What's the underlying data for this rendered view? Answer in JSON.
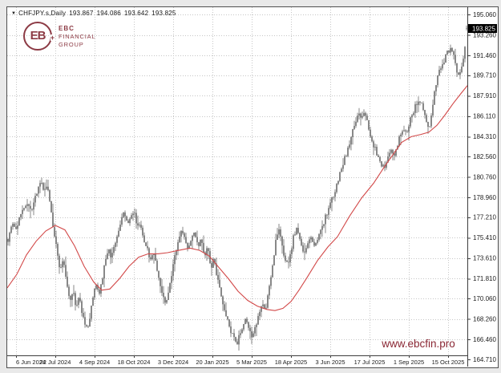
{
  "window": {
    "symbol_period": "CHFJPY.s,Daily",
    "open": "193.867",
    "high": "194.086",
    "low": "193.642",
    "close": "193.825"
  },
  "icons": {
    "symbol_dropdown": "▼",
    "logo_glyph": "EB",
    "logo_plus": "+"
  },
  "logo": {
    "line1": "EBC",
    "line2": "FINANCIAL",
    "line3": "GROUP",
    "color": "#8c3a44"
  },
  "watermark": {
    "text": "www.ebcfin.pro",
    "color": "#8a2734"
  },
  "chart_data": {
    "type": "candlestick",
    "title": "CHFJPY.s Daily",
    "last_price": "193.825",
    "last_ohlc": {
      "open": 193.867,
      "high": 194.086,
      "low": 193.642,
      "close": 193.825
    },
    "ylim": [
      164.71,
      195.06
    ],
    "grid": "dotted",
    "price_axis_ticks": [
      "195.060",
      "193.260",
      "191.460",
      "189.710",
      "187.910",
      "186.110",
      "184.310",
      "182.560",
      "180.760",
      "178.960",
      "177.210",
      "175.410",
      "173.610",
      "171.810",
      "170.060",
      "168.260",
      "166.460",
      "164.710"
    ],
    "date_axis_ticks": [
      "6 Jun 2024",
      "22 Jul 2024",
      "4 Sep 2024",
      "18 Oct 2024",
      "3 Dec 2024",
      "20 Jan 2025",
      "5 Mar 2025",
      "18 Apr 2025",
      "3 Jun 2025",
      "17 Jul 2025",
      "1 Sep 2025",
      "15 Oct 2025"
    ],
    "close_path": [
      [
        1,
        175.3
      ],
      [
        6,
        176.8
      ],
      [
        12,
        176.2
      ],
      [
        18,
        177.8
      ],
      [
        24,
        178.4
      ],
      [
        30,
        177.6
      ],
      [
        36,
        179.2
      ],
      [
        42,
        180.3
      ],
      [
        46,
        179.4
      ],
      [
        50,
        180.0
      ],
      [
        54,
        178.2
      ],
      [
        58,
        176.0
      ],
      [
        62,
        174.3
      ],
      [
        66,
        172.6
      ],
      [
        70,
        173.6
      ],
      [
        74,
        171.4
      ],
      [
        78,
        169.8
      ],
      [
        82,
        170.8
      ],
      [
        86,
        169.2
      ],
      [
        90,
        170.2
      ],
      [
        94,
        168.6
      ],
      [
        98,
        167.2
      ],
      [
        102,
        168.0
      ],
      [
        106,
        169.6
      ],
      [
        110,
        171.4
      ],
      [
        114,
        170.4
      ],
      [
        118,
        171.6
      ],
      [
        122,
        173.2
      ],
      [
        126,
        174.6
      ],
      [
        130,
        173.6
      ],
      [
        134,
        174.8
      ],
      [
        138,
        175.8
      ],
      [
        142,
        176.8
      ],
      [
        146,
        177.6
      ],
      [
        150,
        176.4
      ],
      [
        154,
        177.2
      ],
      [
        158,
        177.9
      ],
      [
        162,
        176.2
      ],
      [
        166,
        176.9
      ],
      [
        170,
        175.4
      ],
      [
        174,
        174.6
      ],
      [
        178,
        173.2
      ],
      [
        182,
        174.4
      ],
      [
        186,
        173.0
      ],
      [
        190,
        171.6
      ],
      [
        194,
        170.2
      ],
      [
        198,
        169.4
      ],
      [
        202,
        171.0
      ],
      [
        206,
        172.6
      ],
      [
        210,
        174.0
      ],
      [
        214,
        175.2
      ],
      [
        218,
        176.0
      ],
      [
        222,
        175.2
      ],
      [
        226,
        174.4
      ],
      [
        230,
        175.4
      ],
      [
        234,
        175.9
      ],
      [
        238,
        174.6
      ],
      [
        242,
        175.2
      ],
      [
        246,
        173.8
      ],
      [
        250,
        174.6
      ],
      [
        254,
        172.8
      ],
      [
        258,
        173.6
      ],
      [
        262,
        171.8
      ],
      [
        266,
        170.6
      ],
      [
        270,
        169.4
      ],
      [
        274,
        168.2
      ],
      [
        278,
        167.4
      ],
      [
        282,
        166.6
      ],
      [
        286,
        166.0
      ],
      [
        290,
        166.8
      ],
      [
        294,
        167.8
      ],
      [
        298,
        168.4
      ],
      [
        302,
        167.2
      ],
      [
        306,
        166.6
      ],
      [
        310,
        167.6
      ],
      [
        314,
        168.8
      ],
      [
        318,
        169.8
      ],
      [
        322,
        169.0
      ],
      [
        326,
        170.6
      ],
      [
        330,
        172.4
      ],
      [
        334,
        174.6
      ],
      [
        338,
        176.2
      ],
      [
        342,
        175.0
      ],
      [
        346,
        173.6
      ],
      [
        350,
        172.9
      ],
      [
        354,
        174.2
      ],
      [
        358,
        175.8
      ],
      [
        362,
        176.4
      ],
      [
        366,
        174.8
      ],
      [
        370,
        173.8
      ],
      [
        374,
        175.0
      ],
      [
        378,
        175.6
      ],
      [
        382,
        174.6
      ],
      [
        386,
        174.9
      ],
      [
        390,
        175.8
      ],
      [
        394,
        176.6
      ],
      [
        398,
        177.4
      ],
      [
        402,
        178.2
      ],
      [
        406,
        178.9
      ],
      [
        410,
        179.8
      ],
      [
        414,
        180.9
      ],
      [
        418,
        181.8
      ],
      [
        422,
        182.6
      ],
      [
        426,
        183.4
      ],
      [
        430,
        184.6
      ],
      [
        434,
        185.6
      ],
      [
        438,
        186.3
      ],
      [
        442,
        185.8
      ],
      [
        446,
        186.5
      ],
      [
        450,
        185.4
      ],
      [
        454,
        184.2
      ],
      [
        458,
        183.4
      ],
      [
        462,
        182.6
      ],
      [
        466,
        182.0
      ],
      [
        470,
        181.6
      ],
      [
        474,
        182.4
      ],
      [
        478,
        183.2
      ],
      [
        482,
        182.6
      ],
      [
        486,
        183.4
      ],
      [
        490,
        184.4
      ],
      [
        494,
        185.2
      ],
      [
        498,
        184.6
      ],
      [
        502,
        185.6
      ],
      [
        506,
        186.4
      ],
      [
        510,
        187.2
      ],
      [
        514,
        187.6
      ],
      [
        518,
        186.8
      ],
      [
        522,
        185.8
      ],
      [
        526,
        184.8
      ],
      [
        530,
        186.6
      ],
      [
        534,
        188.6
      ],
      [
        538,
        189.8
      ],
      [
        542,
        190.6
      ],
      [
        546,
        191.2
      ],
      [
        550,
        191.8
      ],
      [
        554,
        192.3
      ],
      [
        557,
        191.5
      ],
      [
        560,
        190.3
      ],
      [
        564,
        189.6
      ],
      [
        567,
        190.4
      ],
      [
        570,
        191.6
      ],
      [
        572,
        192.8
      ],
      [
        574,
        193.8
      ]
    ],
    "ma_line": {
      "name": "moving-average",
      "color": "#d24848",
      "points": [
        [
          0,
          171.0
        ],
        [
          12,
          172.2
        ],
        [
          24,
          173.9
        ],
        [
          36,
          175.1
        ],
        [
          48,
          176.0
        ],
        [
          60,
          176.5
        ],
        [
          72,
          176.1
        ],
        [
          84,
          174.7
        ],
        [
          96,
          172.9
        ],
        [
          108,
          171.5
        ],
        [
          118,
          170.8
        ],
        [
          128,
          170.9
        ],
        [
          140,
          171.8
        ],
        [
          152,
          172.9
        ],
        [
          164,
          173.7
        ],
        [
          176,
          174.0
        ],
        [
          188,
          174.0
        ],
        [
          200,
          174.1
        ],
        [
          214,
          174.3
        ],
        [
          228,
          174.5
        ],
        [
          240,
          174.3
        ],
        [
          252,
          173.8
        ],
        [
          264,
          172.8
        ],
        [
          276,
          171.8
        ],
        [
          288,
          170.7
        ],
        [
          300,
          169.9
        ],
        [
          312,
          169.4
        ],
        [
          324,
          169.1
        ],
        [
          334,
          169.0
        ],
        [
          344,
          169.2
        ],
        [
          354,
          169.8
        ],
        [
          364,
          170.8
        ],
        [
          374,
          171.9
        ],
        [
          387,
          173.4
        ],
        [
          400,
          174.6
        ],
        [
          412,
          175.5
        ],
        [
          427,
          177.3
        ],
        [
          442,
          178.9
        ],
        [
          457,
          180.2
        ],
        [
          470,
          181.6
        ],
        [
          482,
          182.8
        ],
        [
          492,
          183.8
        ],
        [
          504,
          184.3
        ],
        [
          516,
          184.5
        ],
        [
          526,
          184.7
        ],
        [
          536,
          185.3
        ],
        [
          546,
          186.2
        ],
        [
          556,
          187.2
        ],
        [
          566,
          188.1
        ],
        [
          574,
          188.8
        ]
      ]
    },
    "colors": {
      "candle": "#555555",
      "grid": "#c6c6c6",
      "axis_text": "#1c1c1c",
      "separator": "#3d3d3d",
      "last_price_bg": "#000000",
      "last_price_text": "#ffffff",
      "background": "#ffffff"
    }
  }
}
